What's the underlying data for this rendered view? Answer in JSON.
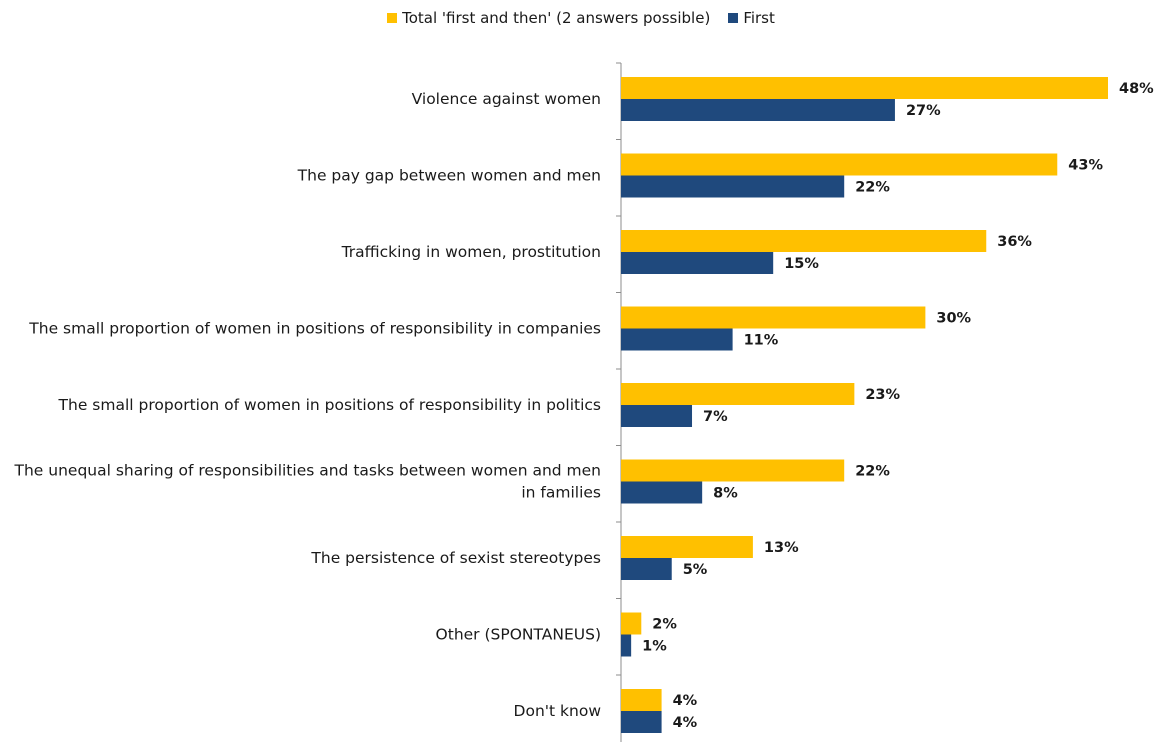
{
  "chart_data": {
    "type": "bar",
    "orientation": "horizontal",
    "categories": [
      "Violence against women",
      "The pay gap between women and men",
      "Trafficking in women, prostitution",
      "The small proportion of women in positions of responsibility in companies",
      "The small proportion of women in positions of responsibility in politics",
      "The unequal sharing of responsibilities and tasks between women and men in families",
      "The persistence of sexist stereotypes",
      "Other (SPONTANEUS)",
      "Don't know"
    ],
    "series": [
      {
        "name": "Total 'first and then' (2 answers possible)",
        "color": "#ffc000",
        "values": [
          48,
          43,
          36,
          30,
          23,
          22,
          13,
          2,
          4
        ],
        "labels": [
          "48%",
          "43%",
          "36%",
          "30%",
          "23%",
          "22%",
          "13%",
          "2%",
          "4%"
        ]
      },
      {
        "name": "First",
        "color": "#1f497d",
        "values": [
          27,
          22,
          15,
          11,
          7,
          8,
          5,
          1,
          4
        ],
        "labels": [
          "27%",
          "22%",
          "15%",
          "11%",
          "7%",
          "8%",
          "5%",
          "1%",
          "4%"
        ]
      }
    ],
    "xlim": [
      0,
      48
    ],
    "legend": "top",
    "grid": false
  }
}
